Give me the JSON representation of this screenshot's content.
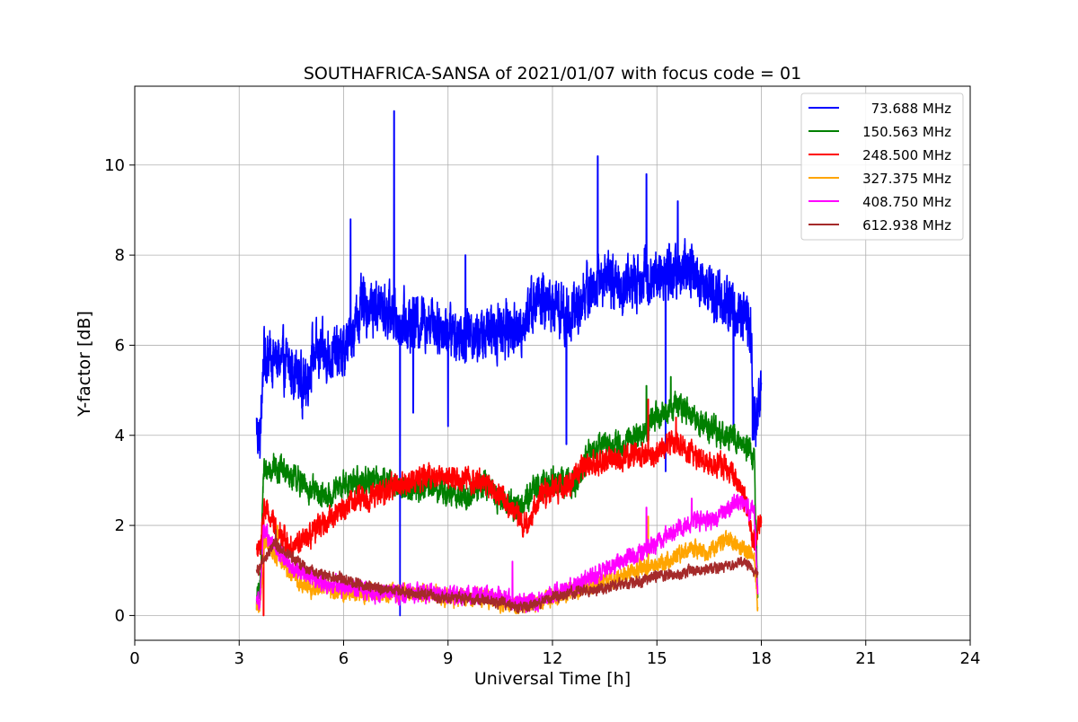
{
  "chart_data": {
    "type": "line",
    "title": "SOUTHAFRICA-SANSA of 2021/01/07 with focus code = 01",
    "xlabel": "Universal Time [h]",
    "ylabel": "Y-factor [dB]",
    "xlim": [
      0,
      24
    ],
    "ylim": [
      -0.55,
      11.75
    ],
    "xticks": [
      0,
      3,
      6,
      9,
      12,
      15,
      18,
      21,
      24
    ],
    "yticks": [
      0,
      2,
      4,
      6,
      8,
      10
    ],
    "xtick_labels": [
      "0",
      "3",
      "6",
      "9",
      "12",
      "15",
      "18",
      "21",
      "24"
    ],
    "ytick_labels": [
      "0",
      "2",
      "4",
      "6",
      "8",
      "10"
    ],
    "grid": true,
    "legend_position": "top-right",
    "series": [
      {
        "name": "73.688 MHz",
        "color": "#0000ff",
        "noise": 0.45,
        "x": [
          3.5,
          3.6,
          3.7,
          4.0,
          4.5,
          4.9,
          5.1,
          5.5,
          6.0,
          6.5,
          7.0,
          7.5,
          8.0,
          8.5,
          9.0,
          9.5,
          10.0,
          10.5,
          11.0,
          11.5,
          12.0,
          12.5,
          13.0,
          13.5,
          14.0,
          14.5,
          15.0,
          15.5,
          16.0,
          16.5,
          17.0,
          17.5,
          17.7,
          17.8,
          18.0
        ],
        "y": [
          4.2,
          3.8,
          5.8,
          5.7,
          5.5,
          5.1,
          5.8,
          5.8,
          5.8,
          6.8,
          6.9,
          6.6,
          6.5,
          6.6,
          6.3,
          6.3,
          6.2,
          6.4,
          6.3,
          7.0,
          6.9,
          6.6,
          7.2,
          7.5,
          7.3,
          7.5,
          7.6,
          7.6,
          7.6,
          7.3,
          6.9,
          6.6,
          6.3,
          4.2,
          4.8
        ],
        "spikes": [
          [
            6.2,
            8.8
          ],
          [
            7.45,
            11.2
          ],
          [
            7.62,
            0.0
          ],
          [
            8.0,
            4.5
          ],
          [
            9.0,
            4.2
          ],
          [
            9.5,
            8.0
          ],
          [
            12.4,
            3.8
          ],
          [
            13.3,
            10.2
          ],
          [
            14.7,
            9.8
          ],
          [
            15.25,
            3.2
          ],
          [
            15.6,
            9.2
          ],
          [
            17.2,
            3.9
          ],
          [
            17.75,
            3.9
          ]
        ]
      },
      {
        "name": "150.563 MHz",
        "color": "#008000",
        "noise": 0.22,
        "x": [
          3.5,
          3.6,
          3.7,
          4.0,
          4.5,
          5.0,
          5.5,
          6.0,
          6.5,
          7.0,
          7.5,
          8.0,
          8.5,
          9.0,
          9.5,
          10.0,
          10.5,
          11.0,
          11.5,
          12.0,
          12.5,
          12.7,
          13.0,
          13.5,
          14.0,
          14.5,
          15.0,
          15.5,
          16.0,
          16.5,
          17.0,
          17.5,
          17.8,
          17.9
        ],
        "y": [
          0.3,
          0.6,
          3.2,
          3.3,
          3.1,
          2.8,
          2.6,
          2.9,
          3.0,
          3.0,
          2.9,
          2.8,
          2.9,
          2.7,
          2.6,
          2.9,
          2.6,
          2.4,
          2.8,
          3.0,
          2.9,
          2.9,
          3.6,
          3.8,
          3.8,
          4.0,
          4.4,
          4.7,
          4.4,
          4.2,
          4.0,
          3.8,
          3.5,
          0.2
        ],
        "spikes": [
          [
            14.7,
            5.1
          ],
          [
            15.4,
            5.3
          ]
        ]
      },
      {
        "name": "248.500 MHz",
        "color": "#ff0000",
        "noise": 0.2,
        "x": [
          3.5,
          3.6,
          3.7,
          4.0,
          4.5,
          5.0,
          5.5,
          6.0,
          6.5,
          7.0,
          7.5,
          8.0,
          8.5,
          9.0,
          9.5,
          10.0,
          10.5,
          11.0,
          11.3,
          11.6,
          12.0,
          12.5,
          12.7,
          13.0,
          13.5,
          14.0,
          14.5,
          15.0,
          15.5,
          16.0,
          16.5,
          17.0,
          17.5,
          17.8,
          18.0
        ],
        "y": [
          1.5,
          1.4,
          2.4,
          2.0,
          1.5,
          1.7,
          2.1,
          2.4,
          2.6,
          2.7,
          2.9,
          3.0,
          3.1,
          3.1,
          3.0,
          3.0,
          2.7,
          2.2,
          2.0,
          2.6,
          2.8,
          2.9,
          3.2,
          3.3,
          3.4,
          3.5,
          3.6,
          3.6,
          3.9,
          3.6,
          3.4,
          3.3,
          2.7,
          1.6,
          2.1
        ],
        "spikes": [
          [
            3.7,
            0.0
          ],
          [
            14.75,
            4.8
          ],
          [
            15.55,
            4.4
          ]
        ]
      },
      {
        "name": "327.375 MHz",
        "color": "#ffa500",
        "noise": 0.14,
        "x": [
          3.5,
          3.6,
          3.7,
          4.0,
          4.5,
          5.0,
          5.5,
          6.0,
          6.5,
          7.0,
          7.5,
          8.0,
          8.5,
          9.0,
          9.5,
          10.0,
          10.5,
          11.0,
          11.5,
          12.0,
          12.5,
          13.0,
          13.5,
          14.0,
          14.5,
          15.0,
          15.5,
          16.0,
          16.5,
          17.0,
          17.5,
          17.8,
          17.9
        ],
        "y": [
          0.2,
          0.1,
          1.6,
          1.4,
          0.9,
          0.6,
          0.6,
          0.5,
          0.5,
          0.5,
          0.5,
          0.5,
          0.5,
          0.4,
          0.4,
          0.4,
          0.3,
          0.2,
          0.25,
          0.4,
          0.5,
          0.6,
          0.8,
          0.9,
          1.0,
          1.1,
          1.3,
          1.5,
          1.4,
          1.7,
          1.5,
          1.3,
          0.1
        ],
        "spikes": [
          [
            4.1,
            2.0
          ],
          [
            14.75,
            2.2
          ]
        ]
      },
      {
        "name": "408.750 MHz",
        "color": "#ff00ff",
        "noise": 0.15,
        "x": [
          3.5,
          3.6,
          3.7,
          4.0,
          4.5,
          5.0,
          5.5,
          6.0,
          6.5,
          7.0,
          7.5,
          8.0,
          8.5,
          9.0,
          9.5,
          10.0,
          10.5,
          11.0,
          11.5,
          12.0,
          12.5,
          13.0,
          13.5,
          14.0,
          14.5,
          15.0,
          15.5,
          16.0,
          16.5,
          17.0,
          17.3,
          17.6,
          17.8,
          17.9
        ],
        "y": [
          0.4,
          0.3,
          1.9,
          1.5,
          1.1,
          0.9,
          0.7,
          0.6,
          0.6,
          0.5,
          0.5,
          0.5,
          0.5,
          0.45,
          0.45,
          0.45,
          0.4,
          0.3,
          0.3,
          0.5,
          0.6,
          0.8,
          1.0,
          1.2,
          1.4,
          1.6,
          1.9,
          2.1,
          2.1,
          2.3,
          2.6,
          2.4,
          2.3,
          0.3
        ],
        "spikes": [
          [
            10.85,
            1.2
          ],
          [
            14.7,
            2.4
          ],
          [
            16.0,
            2.6
          ]
        ]
      },
      {
        "name": "612.938 MHz",
        "color": "#a52a2a",
        "noise": 0.09,
        "x": [
          3.5,
          3.7,
          4.0,
          4.5,
          5.0,
          5.5,
          6.0,
          6.5,
          7.0,
          7.5,
          8.0,
          8.5,
          9.0,
          9.5,
          10.0,
          10.5,
          11.0,
          11.5,
          12.0,
          12.5,
          13.0,
          13.5,
          14.0,
          14.5,
          15.0,
          15.5,
          16.0,
          16.5,
          17.0,
          17.5,
          17.8,
          17.9
        ],
        "y": [
          1.0,
          1.2,
          1.6,
          1.3,
          1.0,
          0.9,
          0.8,
          0.7,
          0.6,
          0.55,
          0.5,
          0.45,
          0.4,
          0.38,
          0.35,
          0.3,
          0.15,
          0.25,
          0.4,
          0.5,
          0.55,
          0.6,
          0.7,
          0.75,
          0.9,
          0.9,
          1.0,
          1.0,
          1.1,
          1.2,
          1.0,
          0.9
        ],
        "spikes": [
          [
            4.05,
            1.9
          ]
        ]
      }
    ]
  }
}
